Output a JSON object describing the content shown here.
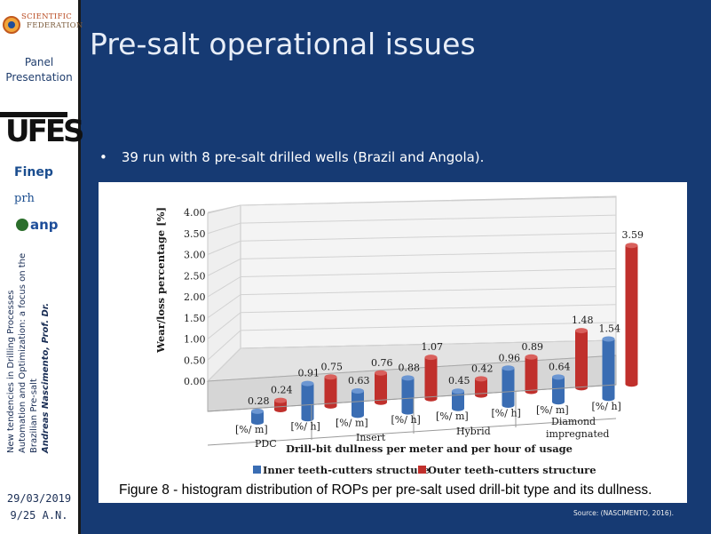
{
  "sidebar": {
    "logo_line1": "SCIENTIFIC",
    "logo_line2": "FEDERATION",
    "panel_label": "Panel Presentation",
    "ufes_logo_text": "UFES",
    "finep_logo_text": "Finep",
    "prh_logo_text": "prh",
    "anp_logo_text": "anp",
    "vertical_title": "New tendencies in Drilling Processes Automation and Optimization: a focus on the Brazilian Pre-salt",
    "vertical_author": "Andreas Nascimento, Prof. Dr.",
    "date": "29/03/2019",
    "page": "9/25 A.N."
  },
  "slide": {
    "title": "Pre-salt operational issues",
    "bullet_marker": "•",
    "bullet_text": "39 run with 8 pre-salt drilled wells (Brazil and Angola).",
    "caption": "Figure 8 - histogram distribution of ROPs per pre-salt used drill-bit type and its dullness.",
    "source": "Source: (NASCIMENTO, 2016)."
  },
  "colors": {
    "background": "#163a73",
    "title_text": "#e8eef8",
    "inner_series": "#3a6db3",
    "outer_series": "#c0302c"
  },
  "chart_data": {
    "type": "bar",
    "ylabel": "Wear/loss percentage [%]",
    "xlabel": "Drill-bit dullness per meter and per hour of usage",
    "ylim": [
      0,
      4
    ],
    "yticks": [
      "4.00",
      "3.50",
      "3.00",
      "2.50",
      "2.00",
      "1.50",
      "1.00",
      "0.50",
      "0.00"
    ],
    "groups": [
      "PDC",
      "Insert",
      "Hybrid",
      "Diamond impregnated"
    ],
    "subcategories": [
      "[%/ m]",
      "[%/ h]"
    ],
    "bars": [
      {
        "group": "PDC",
        "metric": "[%/ m]",
        "series": "Inner teeth-cutters structure",
        "value": 0.28,
        "label": "0.28"
      },
      {
        "group": "PDC",
        "metric": "[%/ m]",
        "series": "Outer teeth-cutters structure",
        "value": 0.24,
        "label": "0.24"
      },
      {
        "group": "PDC",
        "metric": "[%/ h]",
        "series": "Inner teeth-cutters structure",
        "value": 0.91,
        "label": "0.91"
      },
      {
        "group": "PDC",
        "metric": "[%/ h]",
        "series": "Outer teeth-cutters structure",
        "value": 0.75,
        "label": "0.75"
      },
      {
        "group": "Insert",
        "metric": "[%/ m]",
        "series": "Inner teeth-cutters structure",
        "value": 0.63,
        "label": "0.63"
      },
      {
        "group": "Insert",
        "metric": "[%/ m]",
        "series": "Outer teeth-cutters structure",
        "value": 0.76,
        "label": "0.76"
      },
      {
        "group": "Insert",
        "metric": "[%/ h]",
        "series": "Inner teeth-cutters structure",
        "value": 0.88,
        "label": "0.88"
      },
      {
        "group": "Insert",
        "metric": "[%/ h]",
        "series": "Outer teeth-cutters structure",
        "value": 1.07,
        "label": "1.07"
      },
      {
        "group": "Hybrid",
        "metric": "[%/ m]",
        "series": "Inner teeth-cutters structure",
        "value": 0.45,
        "label": "0.45"
      },
      {
        "group": "Hybrid",
        "metric": "[%/ m]",
        "series": "Outer teeth-cutters structure",
        "value": 0.42,
        "label": "0.42"
      },
      {
        "group": "Hybrid",
        "metric": "[%/ h]",
        "series": "Inner teeth-cutters structure",
        "value": 0.96,
        "label": "0.96"
      },
      {
        "group": "Hybrid",
        "metric": "[%/ h]",
        "series": "Outer teeth-cutters structure",
        "value": 0.89,
        "label": "0.89"
      },
      {
        "group": "Diamond impregnated",
        "metric": "[%/ m]",
        "series": "Inner teeth-cutters structure",
        "value": 0.64,
        "label": "0.64"
      },
      {
        "group": "Diamond impregnated",
        "metric": "[%/ m]",
        "series": "Outer teeth-cutters structure",
        "value": 1.48,
        "label": "1.48"
      },
      {
        "group": "Diamond impregnated",
        "metric": "[%/ h]",
        "series": "Inner teeth-cutters structure",
        "value": 1.54,
        "label": "1.54"
      },
      {
        "group": "Diamond impregnated",
        "metric": "[%/ h]",
        "series": "Outer teeth-cutters structure",
        "value": 3.59,
        "label": "3.59"
      }
    ],
    "legend": [
      {
        "name": "Inner teeth-cutters structure",
        "color": "#3a6db3"
      },
      {
        "name": "Outer teeth-cutters structure",
        "color": "#c0302c"
      }
    ]
  }
}
